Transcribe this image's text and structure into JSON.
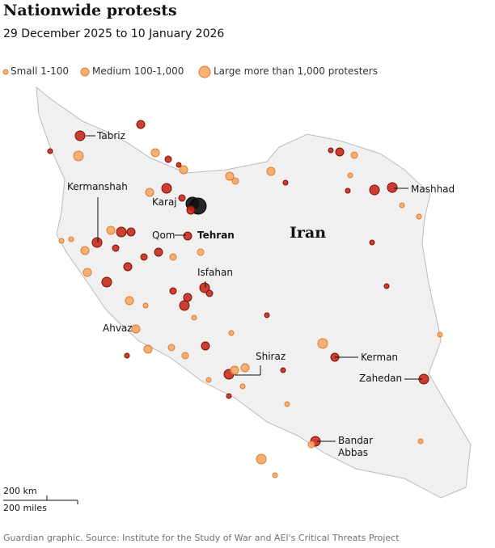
{
  "header": {
    "title": "Nationwide protests",
    "subtitle": "29 December 2025 to 10 January 2026"
  },
  "legend": [
    "Small 1-100",
    "Medium 100-1,000",
    "Large more than 1,000 protesters"
  ],
  "map": {
    "country": "Iran",
    "cities": [
      "Tabriz",
      "Kermanshah",
      "Karaj",
      "Qom",
      "Tehran",
      "Isfahan",
      "Ahvaz",
      "Shiraz",
      "Kerman",
      "Zahedan",
      "Mashhad",
      "Bandar Abbas"
    ]
  },
  "scale": [
    "200 km",
    "200 miles"
  ],
  "footer": "Guardian graphic. Source: Institute for the Study of War and AEI's Critical Threats Project"
}
